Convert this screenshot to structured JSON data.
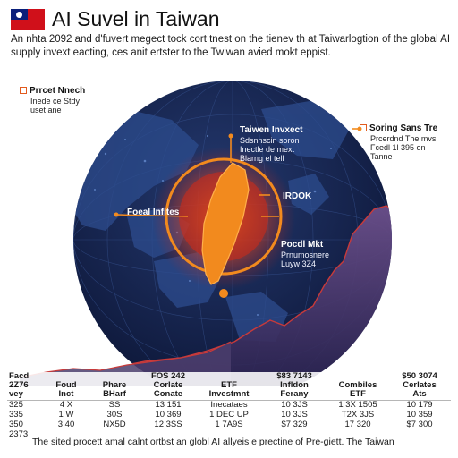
{
  "header": {
    "title": "AI Suvel in Taiwan",
    "intro_lines": [
      "An nhta 2092 and d'fuvert megect tock cort tnest on the tienev th at Taiwarlogtion of the global AI",
      "supply invext eacting, ces anit ertster to the Twiwan avied mokt eppist."
    ]
  },
  "callouts": {
    "left_top": {
      "head": "Prrcet Nnech",
      "lines": [
        "Inede ce Stdy",
        "uset ane"
      ]
    },
    "taiwan_invest": {
      "head": "Taiwen Invxect",
      "lines": [
        "Sdsnnscin soron",
        "Inectle de mext",
        "Blarng el tell"
      ]
    },
    "right_top": {
      "head": "Soring Sans Tre",
      "lines": [
        "Prcerdnd The mvs",
        "Fcedl 1l 395 on",
        "Tanne"
      ]
    },
    "foed": {
      "head": "Foeal Infites"
    },
    "irdok": {
      "head": "IRDOK"
    },
    "pocdl": {
      "head": "Pocdl Mkt",
      "lines": [
        "Prnumosnere",
        "Luyw 3Z4"
      ]
    }
  },
  "table": {
    "left_block": [
      "Facd",
      "2Z76",
      "vey",
      "325",
      "335",
      "350",
      "2373"
    ],
    "headers": [
      [
        "Foud",
        "Inct"
      ],
      [
        "Phare",
        "BHarf"
      ],
      [
        "FOS 242",
        "Corlate",
        "Conate"
      ],
      [
        "ETF",
        "Investmnt"
      ],
      [
        "$83 7143",
        "Infldon",
        "Ferany"
      ],
      [
        "Combiles",
        "ETF"
      ],
      [
        "$50 3074",
        "Cerlates",
        "Ats"
      ]
    ],
    "rows": [
      [
        "4 X",
        "SS",
        "13 151",
        "Inecataes",
        "10 3JS",
        "1 3X 1505",
        "10 179"
      ],
      [
        "1 W",
        "30S",
        "10 369",
        "1 DEC UP",
        "10 3JS",
        "T2X 3JS",
        "10 359"
      ],
      [
        "3 40",
        "NX5D",
        "12 3SS",
        "1 7A9S",
        "$7 329",
        "17 320",
        "$7 300"
      ]
    ]
  },
  "footer": "The sited procett amal calnt ortbst an globl AI allyeis e prectine of Pre-giett. The Taiwan",
  "colors": {
    "globe_fill": "#121f4a",
    "accent_orange": "#f28a1e",
    "accent_red": "#d42a16",
    "chart_purple": "#5c4a7e",
    "chart_line": "#c83a3a"
  }
}
